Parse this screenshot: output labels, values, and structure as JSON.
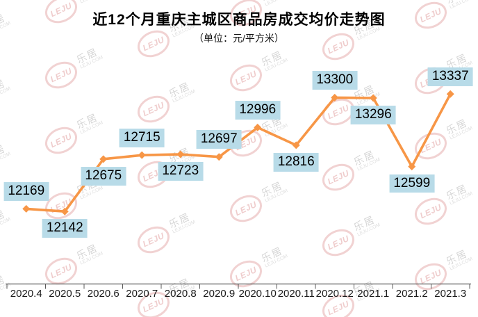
{
  "header": {
    "title": "近12个月重庆主城区商品房成交均价走势图",
    "subtitle": "（单位：元/平方米）"
  },
  "watermark": {
    "logo": "LEJU",
    "brand": "乐居",
    "domain": "LEJU.COM"
  },
  "chart_data": {
    "type": "line",
    "title": "近12个月重庆主城区商品房成交均价走势图",
    "unit_label": "（单位：元/平方米）",
    "categories": [
      "2020.4",
      "2020.5",
      "2020.6",
      "2020.7",
      "2020.8",
      "2020.9",
      "2020.10",
      "2020.11",
      "2020.12",
      "2021.1",
      "2021.2",
      "2021.3"
    ],
    "values": [
      12169,
      12142,
      12675,
      12715,
      12723,
      12697,
      12996,
      12816,
      13300,
      13296,
      12599,
      13337
    ],
    "label_placement": [
      "above",
      "below",
      "below",
      "above",
      "below",
      "above",
      "above",
      "below",
      "above",
      "below",
      "below",
      "above"
    ],
    "ylim": [
      11800,
      13600
    ],
    "grid": false,
    "legend": "none",
    "colors": {
      "line": "#F79646",
      "marker": "#F79646",
      "label_bg": "#B8DBE8",
      "label_text": "#000000",
      "axis": "#595959",
      "watermark_pink": "#D06A6A",
      "watermark_gray": "#7D7D7D"
    }
  }
}
